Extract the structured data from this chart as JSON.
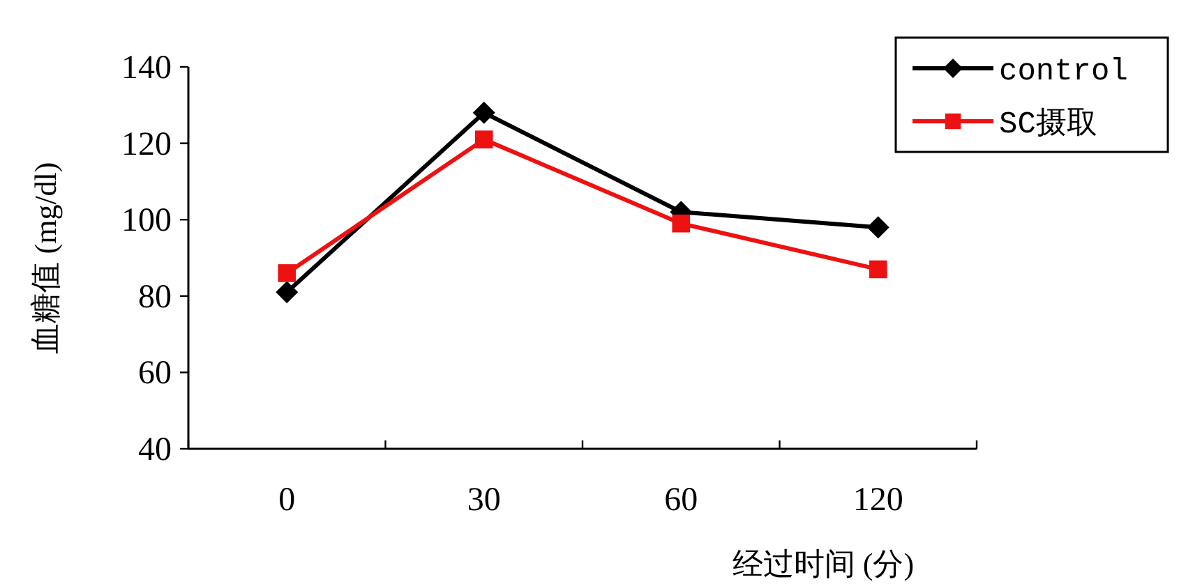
{
  "chart_data": {
    "type": "line",
    "xlabel": "经过时间 (分)",
    "ylabel": "血糖值 (mg/dl)",
    "categories": [
      "0",
      "30",
      "60",
      "120"
    ],
    "series": [
      {
        "name": "control",
        "color": "#000000",
        "marker": "diamond",
        "values": [
          81,
          128,
          102,
          98
        ]
      },
      {
        "name": "SC摄取",
        "color": "#ee1111",
        "marker": "square",
        "values": [
          86,
          121,
          99,
          87
        ]
      }
    ],
    "ylim": [
      40,
      140
    ],
    "yticks": [
      40,
      60,
      80,
      100,
      120,
      140
    ],
    "legend": "top right",
    "grid": false,
    "line_style": "solid"
  }
}
